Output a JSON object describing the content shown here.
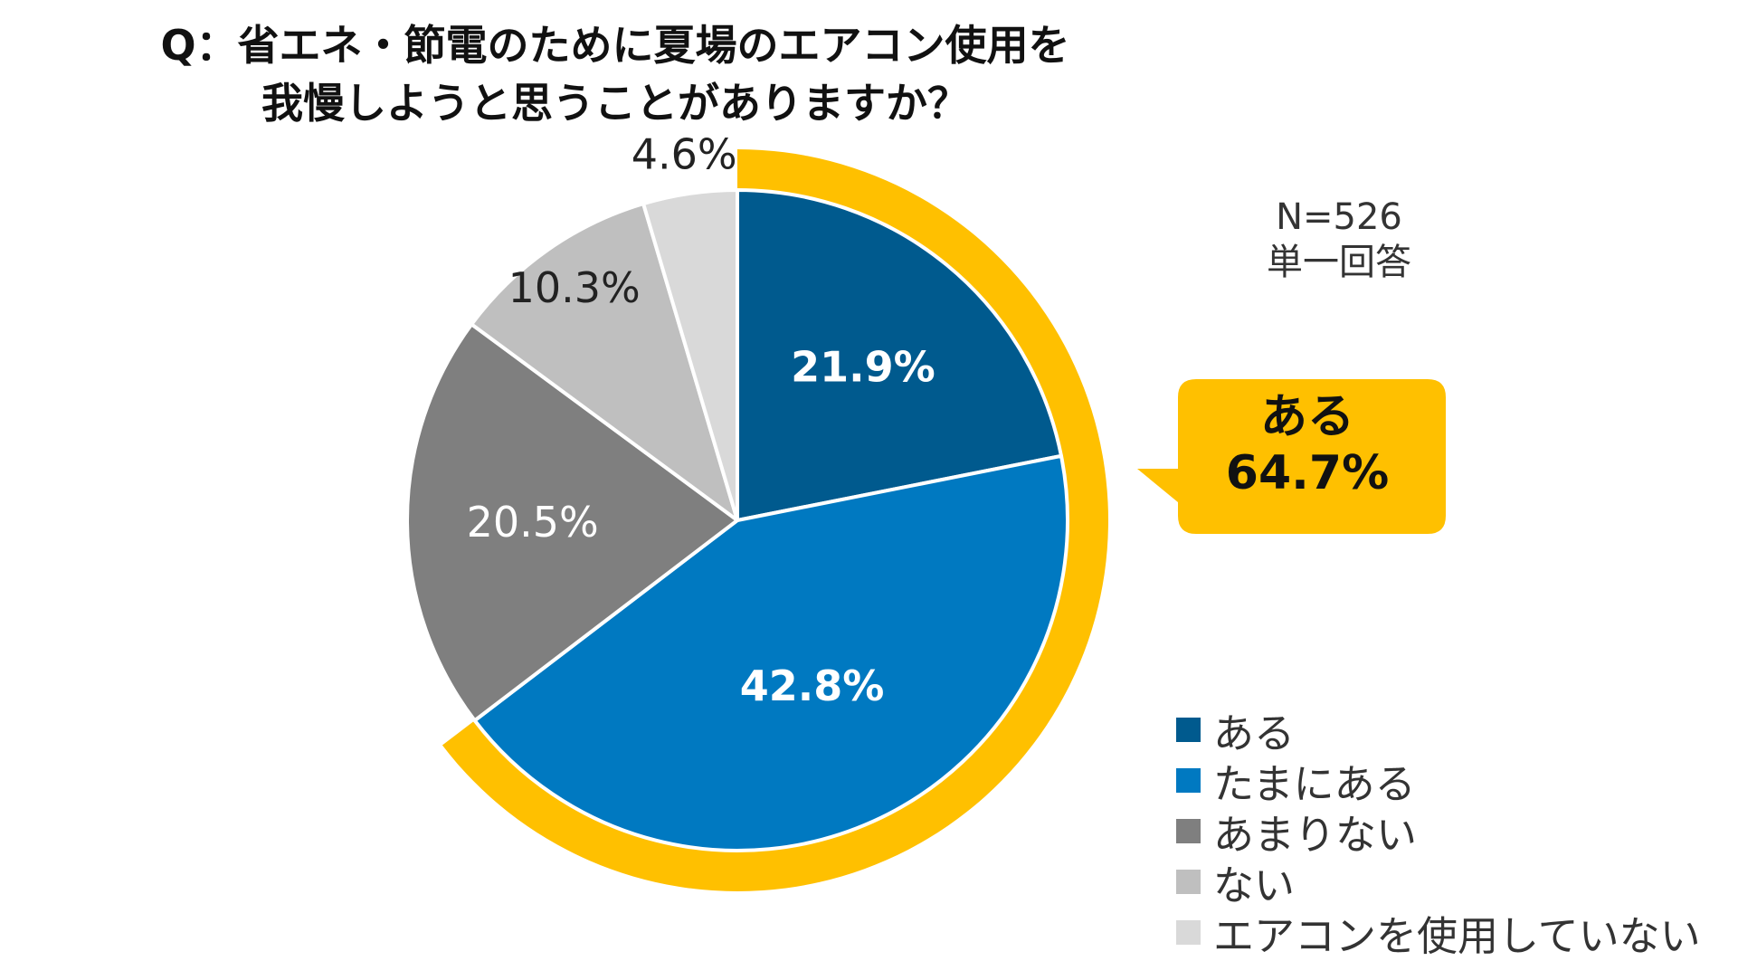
{
  "title_lines": [
    "Q：省エネ・節電のために夏場のエアコン使用を",
    "我慢しようと思うことがありますか？"
  ],
  "sample_note": "N=526",
  "answer_note": "単一回答",
  "callout": {
    "label": "ある",
    "value": "64.7%",
    "color": "#FFC000"
  },
  "chart_data": {
    "type": "pie",
    "start": "12 o'clock, clockwise",
    "slices": [
      {
        "name": "ある",
        "value": 21.9,
        "label": "21.9%",
        "color": "#005A8E",
        "label_color": "#FFFFFF",
        "label_bold": true
      },
      {
        "name": "たまにある",
        "value": 42.8,
        "label": "42.8%",
        "color": "#0079C1",
        "label_color": "#FFFFFF",
        "label_bold": true
      },
      {
        "name": "あまりない",
        "value": 20.5,
        "label": "20.5%",
        "color": "#7F7F7F",
        "label_color": "#FFFFFF",
        "label_bold": false
      },
      {
        "name": "ない",
        "value": 10.3,
        "label": "10.3%",
        "color": "#BFBFBF",
        "label_color": "#222222",
        "label_bold": false
      },
      {
        "name": "エアコンを使用していない",
        "value": 4.6,
        "label": "4.6%",
        "color": "#D9D9D9",
        "label_color": "#222222",
        "label_bold": false
      }
    ],
    "highlight_ring": {
      "covers": [
        "ある",
        "たまにある"
      ],
      "total": 64.7,
      "color": "#FFC000"
    },
    "legend_position": "bottom-right"
  }
}
